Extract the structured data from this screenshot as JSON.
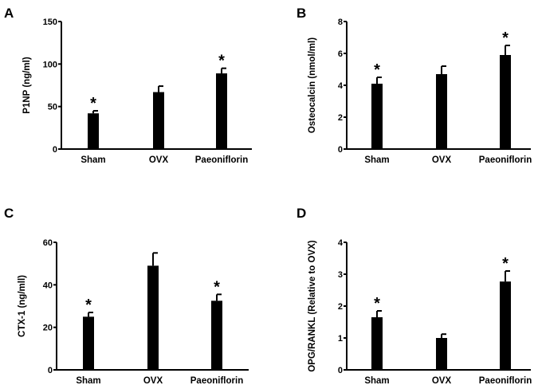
{
  "chart_data": [
    {
      "panel": "A",
      "type": "bar",
      "categories": [
        "Sham",
        "OVX",
        "Paeoniflorin"
      ],
      "values": [
        42,
        67,
        89
      ],
      "error_upper": [
        45,
        74,
        95
      ],
      "significance": [
        "*",
        "",
        "*"
      ],
      "ylabel": "P1NP (ng/ml)",
      "xlabel": "",
      "ylim": [
        0,
        150
      ],
      "yticks": [
        0,
        50,
        100,
        150
      ],
      "grid": false,
      "bar_color": "#000000"
    },
    {
      "panel": "B",
      "type": "bar",
      "categories": [
        "Sham",
        "OVX",
        "Paeoniflorin"
      ],
      "values": [
        4.1,
        4.7,
        5.9
      ],
      "error_upper": [
        4.5,
        5.2,
        6.5
      ],
      "significance": [
        "*",
        "",
        "*"
      ],
      "ylabel": "Osteocalcin (nmol/ml)",
      "xlabel": "",
      "ylim": [
        0,
        8
      ],
      "yticks": [
        0,
        2,
        4,
        6,
        8
      ],
      "grid": false,
      "bar_color": "#000000"
    },
    {
      "panel": "C",
      "type": "bar",
      "categories": [
        "Sham",
        "OVX",
        "Paeoniflorin"
      ],
      "values": [
        25,
        49,
        32.5
      ],
      "error_upper": [
        27,
        55,
        35.5
      ],
      "significance": [
        "*",
        "",
        "*"
      ],
      "ylabel": "CTX-1 (ng/mll)",
      "xlabel": "",
      "ylim": [
        0,
        60
      ],
      "yticks": [
        0,
        20,
        40,
        60
      ],
      "grid": false,
      "bar_color": "#000000"
    },
    {
      "panel": "D",
      "type": "bar",
      "categories": [
        "Sham",
        "OVX",
        "Paeoniflorin"
      ],
      "values": [
        1.65,
        1.0,
        2.77
      ],
      "error_upper": [
        1.85,
        1.12,
        3.1
      ],
      "significance": [
        "*",
        "",
        "*"
      ],
      "ylabel": "OPG/RANKL (Relative to OVX)",
      "xlabel": "",
      "ylim": [
        0,
        4
      ],
      "yticks": [
        0,
        1,
        2,
        3,
        4
      ],
      "grid": false,
      "bar_color": "#000000"
    }
  ]
}
